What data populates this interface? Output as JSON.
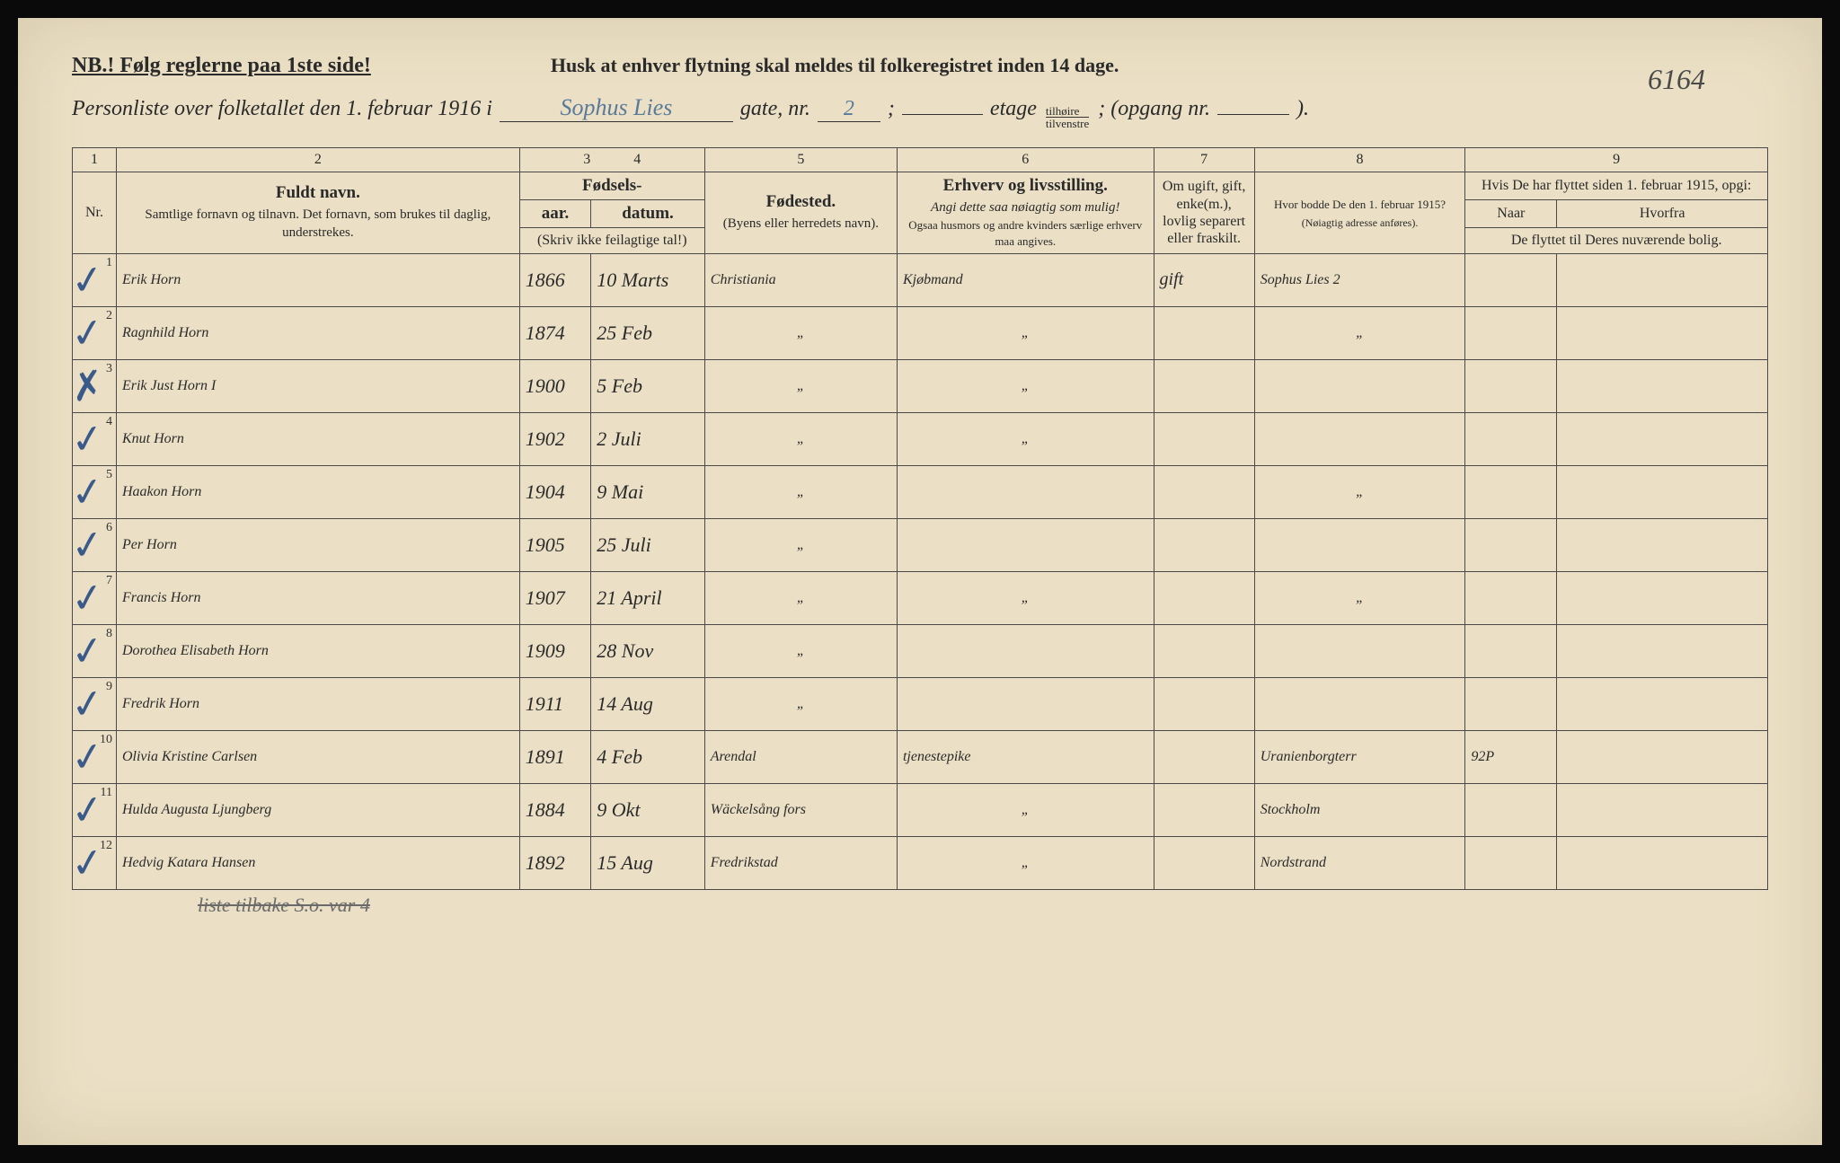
{
  "header": {
    "nb": "NB.! Følg reglerne paa 1ste side!",
    "husk": "Husk at enhver flytning skal meldes til folkeregistret inden 14 dage.",
    "page_number": "6164",
    "personliste_prefix": "Personliste over folketallet den 1. februar 1916 i",
    "street": "Sophus Lies",
    "gate_label": "gate, nr.",
    "nr": "2",
    "etage_label": "etage",
    "etage": "",
    "frac_top": "tilhøire",
    "frac_bot": "tilvenstre",
    "opgang_label": "; (opgang nr.",
    "opgang": "",
    "close": ")."
  },
  "columns": {
    "numbers": [
      "1",
      "2",
      "3",
      "4",
      "5",
      "6",
      "7",
      "8",
      "9"
    ],
    "nr": "Nr.",
    "fullname_main": "Fuldt navn.",
    "fullname_sub": "Samtlige fornavn og tilnavn. Det fornavn, som brukes til daglig, understrekes.",
    "fodsels": "Fødsels-",
    "aar": "aar.",
    "datum": "datum.",
    "aar_note": "(Skriv ikke feilagtige tal!)",
    "fodested": "Fødested.",
    "fodested_sub": "(Byens eller herredets navn).",
    "erhverv": "Erhverv og livsstilling.",
    "erhverv_sub1": "Angi dette saa nøiagtig som mulig!",
    "erhverv_sub2": "Ogsaa husmors og andre kvinders særlige erhverv maa angives.",
    "status": "Om ugift, gift, enke(m.), lovlig separert eller fraskilt.",
    "addr1915": "Hvor bodde De den 1. februar 1915?",
    "addr1915_sub": "(Nøiagtig adresse anføres).",
    "moved": "Hvis De har flyttet siden 1. februar 1915, opgi:",
    "naar": "Naar",
    "hvorfra": "Hvorfra",
    "moved_sub": "De flyttet til Deres nuværende bolig."
  },
  "rows": [
    {
      "nr": "1",
      "check": "✓",
      "name": "Erik Horn",
      "year": "1866",
      "date": "10 Marts",
      "place": "Christiania",
      "work": "Kjøbmand",
      "status": "gift",
      "addr": "Sophus Lies 2",
      "naar": "",
      "from": ""
    },
    {
      "nr": "2",
      "check": "✓",
      "name": "Ragnhild Horn",
      "year": "1874",
      "date": "25 Feb",
      "place": "\"",
      "work": "\"",
      "status": "",
      "addr": "\"",
      "naar": "",
      "from": ""
    },
    {
      "nr": "3",
      "check": "✗",
      "name": "Erik Just Horn I",
      "year": "1900",
      "date": "5 Feb",
      "place": "\"",
      "work": "\"",
      "status": "",
      "addr": "",
      "naar": "",
      "from": ""
    },
    {
      "nr": "4",
      "check": "✓",
      "name": "Knut Horn",
      "year": "1902",
      "date": "2 Juli",
      "place": "\"",
      "work": "\"",
      "status": "",
      "addr": "",
      "naar": "",
      "from": ""
    },
    {
      "nr": "5",
      "check": "✓",
      "name": "Haakon Horn",
      "year": "1904",
      "date": "9 Mai",
      "place": "\"",
      "work": "",
      "status": "",
      "addr": "\"",
      "naar": "",
      "from": ""
    },
    {
      "nr": "6",
      "check": "✓",
      "name": "Per Horn",
      "year": "1905",
      "date": "25 Juli",
      "place": "\"",
      "work": "",
      "status": "",
      "addr": "",
      "naar": "",
      "from": ""
    },
    {
      "nr": "7",
      "check": "✓",
      "name": "Francis Horn",
      "year": "1907",
      "date": "21 April",
      "place": "\"",
      "work": "\"",
      "status": "",
      "addr": "\"",
      "naar": "",
      "from": ""
    },
    {
      "nr": "8",
      "check": "✓",
      "name": "Dorothea Elisabeth Horn",
      "year": "1909",
      "date": "28 Nov",
      "place": "\"",
      "work": "",
      "status": "",
      "addr": "",
      "naar": "",
      "from": ""
    },
    {
      "nr": "9",
      "check": "✓",
      "name": "Fredrik Horn",
      "year": "1911",
      "date": "14 Aug",
      "place": "\"",
      "work": "",
      "status": "",
      "addr": "",
      "naar": "",
      "from": ""
    },
    {
      "nr": "10",
      "check": "✓",
      "name": "Olivia Kristine Carlsen",
      "year": "1891",
      "date": "4 Feb",
      "place": "Arendal",
      "work": "tjenestepike",
      "status": "",
      "addr": "Uranienborgterr",
      "naar": "92P",
      "from": ""
    },
    {
      "nr": "11",
      "check": "✓",
      "name": "Hulda Augusta Ljungberg",
      "year": "1884",
      "date": "9 Okt",
      "place": "Wäckelsång fors",
      "work": "\"",
      "status": "",
      "addr": "Stockholm",
      "naar": "",
      "from": ""
    },
    {
      "nr": "12",
      "check": "✓",
      "name": "Hedvig Katara Hansen",
      "year": "1892",
      "date": "15 Aug",
      "place": "Fredrikstad",
      "work": "\"",
      "status": "",
      "addr": "Nordstrand",
      "naar": "",
      "from": ""
    }
  ],
  "footer_note": "liste tilbake S.o. var 4",
  "widths": {
    "nr": 48,
    "name": 440,
    "year": 78,
    "date": 124,
    "place": 210,
    "work": 280,
    "status": 110,
    "addr": 230,
    "naar": 100,
    "from": 230
  },
  "colors": {
    "paper": "#ebe0c5",
    "ink_print": "#2a2a2a",
    "ink_pen": "#5a7a9a",
    "border": "#4a4a4a"
  }
}
